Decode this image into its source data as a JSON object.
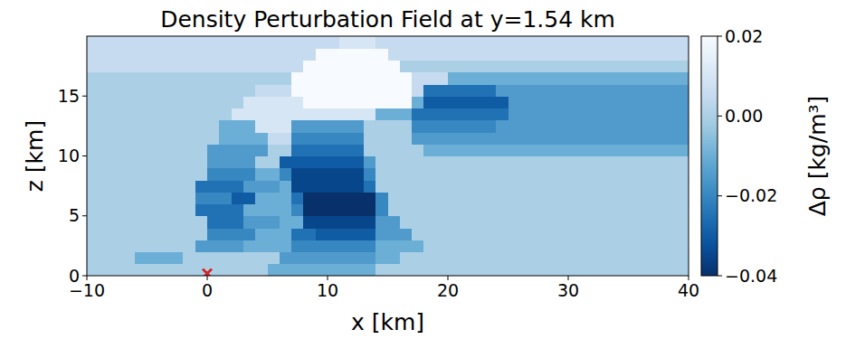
{
  "chart_data": {
    "type": "heatmap",
    "title": "Density Perturbation Field at y=1.54 km",
    "x_label": "x [km]",
    "y_label": "z [km]",
    "xlim": [
      -10,
      40
    ],
    "ylim": [
      0,
      20
    ],
    "xticks": [
      {
        "value": -10,
        "label": "−10"
      },
      0,
      10,
      20,
      30,
      40
    ],
    "yticks": [
      0,
      5,
      10,
      15
    ],
    "colorbar": {
      "label": "Δρ [kg/m³]",
      "lim": [
        -0.04,
        0.02
      ],
      "ticks": [
        {
          "value": 0.02,
          "label": "0.02"
        },
        {
          "value": 0,
          "label": "0.00"
        },
        {
          "value": -0.02,
          "label": "−0.02"
        },
        {
          "value": -0.04,
          "label": "−0.04"
        }
      ]
    },
    "points": {
      "x": [
        0
      ],
      "y": [
        0.2
      ],
      "color": "#d62728",
      "marker": "x"
    },
    "cells": [
      [
        0,
        0,
        0,
        0,
        0,
        0,
        0,
        0,
        0,
        0,
        0,
        0,
        0,
        0,
        0,
        -0.01,
        -0.01,
        -0.01,
        -0.01,
        -0.01,
        -0.01,
        -0.01,
        -0.01,
        -0.01,
        0,
        0,
        0,
        0,
        0,
        0,
        0,
        0,
        0,
        0,
        0,
        0,
        0,
        0,
        0,
        0,
        0,
        0,
        0,
        0,
        0,
        0,
        0,
        0,
        0,
        0
      ],
      [
        0,
        0,
        0,
        0,
        -0.01,
        -0.01,
        -0.01,
        -0.01,
        0,
        0,
        0,
        0,
        0,
        0,
        0,
        0,
        -0.015,
        -0.015,
        -0.015,
        -0.015,
        -0.015,
        -0.015,
        -0.015,
        -0.015,
        -0.01,
        -0.01,
        0,
        0,
        0,
        0,
        0,
        0,
        0,
        0,
        0,
        0,
        0,
        0,
        0,
        0,
        0,
        0,
        0,
        0,
        0,
        0,
        0,
        0,
        0,
        0
      ],
      [
        0,
        0,
        0,
        0,
        0,
        0,
        0,
        0,
        0,
        -0.015,
        -0.015,
        -0.015,
        -0.015,
        -0.01,
        -0.01,
        -0.01,
        -0.01,
        -0.02,
        -0.02,
        -0.02,
        -0.02,
        -0.02,
        -0.02,
        -0.02,
        -0.01,
        -0.01,
        -0.01,
        -0.01,
        0,
        0,
        0,
        0,
        0,
        0,
        0,
        0,
        0,
        0,
        0,
        0,
        0,
        0,
        0,
        0,
        0,
        0,
        0,
        0,
        0,
        0
      ],
      [
        0,
        0,
        0,
        0,
        0,
        0,
        0,
        0,
        0,
        0,
        -0.02,
        -0.02,
        -0.02,
        -0.02,
        -0.01,
        -0.01,
        -0.01,
        -0.025,
        -0.025,
        -0.03,
        -0.03,
        -0.03,
        -0.03,
        -0.03,
        -0.015,
        -0.015,
        -0.015,
        0,
        0,
        0,
        0,
        0,
        0,
        0,
        0,
        0,
        0,
        0,
        0,
        0,
        0,
        0,
        0,
        0,
        0,
        0,
        0,
        0,
        0,
        0
      ],
      [
        0,
        0,
        0,
        0,
        0,
        0,
        0,
        0,
        0,
        0,
        -0.025,
        -0.025,
        -0.025,
        -0.015,
        -0.015,
        -0.015,
        -0.01,
        -0.01,
        -0.035,
        -0.035,
        -0.035,
        -0.035,
        -0.035,
        -0.035,
        -0.015,
        -0.015,
        0,
        0,
        0,
        0,
        0,
        0,
        0,
        0,
        0,
        0,
        0,
        0,
        0,
        0,
        0,
        0,
        0,
        0,
        0,
        0,
        0,
        0,
        0,
        0
      ],
      [
        0,
        0,
        0,
        0,
        0,
        0,
        0,
        0,
        0,
        -0.025,
        -0.025,
        -0.025,
        -0.025,
        -0.01,
        -0.01,
        -0.01,
        -0.01,
        -0.02,
        -0.04,
        -0.04,
        -0.04,
        -0.04,
        -0.04,
        -0.04,
        -0.02,
        0,
        0,
        0,
        0,
        0,
        0,
        0,
        0,
        0,
        0,
        0,
        0,
        0,
        0,
        0,
        0,
        0,
        0,
        0,
        0,
        0,
        0,
        0,
        0,
        0
      ],
      [
        0,
        0,
        0,
        0,
        0,
        0,
        0,
        0,
        0,
        -0.02,
        -0.02,
        -0.02,
        -0.03,
        -0.03,
        -0.01,
        -0.01,
        -0.01,
        -0.025,
        -0.04,
        -0.04,
        -0.04,
        -0.04,
        -0.04,
        -0.04,
        -0.02,
        0,
        0,
        0,
        0,
        0,
        0,
        0,
        0,
        0,
        0,
        0,
        0,
        0,
        0,
        0,
        0,
        0,
        0,
        0,
        0,
        0,
        0,
        0,
        0,
        0
      ],
      [
        0,
        0,
        0,
        0,
        0,
        0,
        0,
        0,
        0,
        -0.025,
        -0.025,
        -0.025,
        -0.025,
        -0.015,
        -0.015,
        -0.015,
        -0.01,
        -0.035,
        -0.035,
        -0.035,
        -0.035,
        -0.035,
        -0.035,
        -0.025,
        0,
        0,
        0,
        0,
        0,
        0,
        0,
        0,
        0,
        0,
        0,
        0,
        0,
        0,
        0,
        0,
        0,
        0,
        0,
        0,
        0,
        0,
        0,
        0,
        0,
        0
      ],
      [
        0,
        0,
        0,
        0,
        0,
        0,
        0,
        0,
        0,
        0,
        -0.02,
        -0.02,
        -0.02,
        -0.02,
        -0.01,
        -0.01,
        -0.02,
        -0.035,
        -0.035,
        -0.035,
        -0.035,
        -0.035,
        -0.035,
        -0.02,
        0,
        0,
        0,
        0,
        0,
        0,
        0,
        0,
        0,
        0,
        0,
        0,
        0,
        0,
        0,
        0,
        0,
        0,
        0,
        0,
        0,
        0,
        0,
        0,
        0,
        0
      ],
      [
        0,
        0,
        0,
        0,
        0,
        0,
        0,
        0,
        0,
        0,
        -0.015,
        -0.015,
        -0.015,
        -0.015,
        0,
        0,
        -0.03,
        -0.03,
        -0.03,
        -0.03,
        -0.03,
        -0.03,
        -0.03,
        -0.015,
        0,
        0,
        0,
        0,
        0,
        0,
        0,
        0,
        0,
        0,
        0,
        0,
        0,
        0,
        0,
        0,
        0,
        0,
        0,
        0,
        0,
        0,
        0,
        0,
        0,
        0
      ],
      [
        0,
        0,
        0,
        0,
        0,
        0,
        0,
        0,
        0,
        0,
        -0.015,
        -0.015,
        -0.015,
        -0.015,
        -0.015,
        0,
        0,
        -0.025,
        -0.025,
        -0.025,
        -0.025,
        -0.025,
        -0.025,
        0,
        0,
        0,
        0,
        0,
        -0.01,
        -0.01,
        -0.01,
        -0.01,
        -0.01,
        -0.01,
        -0.01,
        -0.01,
        -0.01,
        -0.01,
        -0.01,
        -0.01,
        -0.01,
        -0.01,
        -0.01,
        -0.01,
        -0.01,
        -0.01,
        -0.01,
        -0.01,
        -0.01,
        -0.01
      ],
      [
        0,
        0,
        0,
        0,
        0,
        0,
        0,
        0,
        0,
        0,
        0,
        -0.01,
        -0.01,
        -0.01,
        -0.01,
        0.005,
        0.005,
        -0.02,
        -0.02,
        -0.02,
        -0.02,
        -0.02,
        -0.02,
        0,
        0,
        0,
        0,
        -0.015,
        -0.015,
        -0.015,
        -0.015,
        -0.015,
        -0.015,
        -0.015,
        -0.015,
        -0.015,
        -0.015,
        -0.015,
        -0.015,
        -0.015,
        -0.015,
        -0.015,
        -0.015,
        -0.015,
        -0.015,
        -0.015,
        -0.015,
        -0.015,
        -0.015,
        -0.015
      ],
      [
        0,
        0,
        0,
        0,
        0,
        0,
        0,
        0,
        0,
        0,
        0,
        -0.01,
        -0.01,
        -0.01,
        0.01,
        0.01,
        0.01,
        -0.015,
        -0.015,
        -0.015,
        -0.015,
        -0.015,
        -0.015,
        0,
        0,
        0,
        0,
        -0.02,
        -0.02,
        -0.02,
        -0.02,
        -0.02,
        -0.02,
        -0.02,
        -0.015,
        -0.015,
        -0.015,
        -0.015,
        -0.015,
        -0.015,
        -0.015,
        -0.015,
        -0.015,
        -0.015,
        -0.015,
        -0.015,
        -0.015,
        -0.015,
        -0.015,
        -0.015
      ],
      [
        0,
        0,
        0,
        0,
        0,
        0,
        0,
        0,
        0,
        0,
        0,
        0,
        0.01,
        0.01,
        0.01,
        0.01,
        0.01,
        0.01,
        0.01,
        0.01,
        0.01,
        0.01,
        0.01,
        0.01,
        -0.01,
        -0.01,
        -0.01,
        -0.025,
        -0.025,
        -0.025,
        -0.025,
        -0.025,
        -0.025,
        -0.025,
        -0.025,
        -0.015,
        -0.015,
        -0.015,
        -0.015,
        -0.015,
        -0.015,
        -0.015,
        -0.015,
        -0.015,
        -0.015,
        -0.015,
        -0.015,
        -0.015,
        -0.015,
        -0.015
      ],
      [
        0,
        0,
        0,
        0,
        0,
        0,
        0,
        0,
        0,
        0,
        0,
        0,
        0,
        0.01,
        0.01,
        0.01,
        0.01,
        0.01,
        0.02,
        0.02,
        0.02,
        0.02,
        0.02,
        0.02,
        0.02,
        0.02,
        0.02,
        -0.01,
        -0.03,
        -0.03,
        -0.03,
        -0.03,
        -0.03,
        -0.03,
        -0.03,
        -0.015,
        -0.015,
        -0.015,
        -0.015,
        -0.015,
        -0.015,
        -0.015,
        -0.015,
        -0.015,
        -0.015,
        -0.015,
        -0.015,
        -0.015,
        -0.015,
        -0.015
      ],
      [
        0,
        0,
        0,
        0,
        0,
        0,
        0,
        0,
        0,
        0,
        0,
        0,
        0,
        0,
        0.005,
        0.005,
        0.005,
        0.02,
        0.02,
        0.02,
        0.02,
        0.02,
        0.02,
        0.02,
        0.02,
        0.02,
        0.02,
        0.005,
        -0.025,
        -0.025,
        -0.025,
        -0.025,
        -0.025,
        -0.025,
        -0.015,
        -0.015,
        -0.015,
        -0.015,
        -0.015,
        -0.015,
        -0.015,
        -0.015,
        -0.015,
        -0.015,
        -0.015,
        -0.015,
        -0.015,
        -0.015,
        -0.015,
        -0.015
      ],
      [
        0,
        0,
        0,
        0,
        0,
        0,
        0,
        0,
        0,
        0,
        0,
        0,
        0,
        0,
        0,
        0,
        0,
        0.02,
        0.02,
        0.02,
        0.02,
        0.02,
        0.02,
        0.02,
        0.02,
        0.02,
        0.02,
        0.005,
        0.005,
        0.005,
        -0.01,
        -0.01,
        -0.01,
        -0.01,
        -0.01,
        -0.01,
        -0.01,
        -0.01,
        -0.01,
        -0.01,
        -0.01,
        -0.01,
        -0.01,
        -0.01,
        -0.01,
        -0.01,
        -0.01,
        -0.01,
        -0.01,
        -0.01
      ],
      [
        0.005,
        0.005,
        0.005,
        0.005,
        0.005,
        0.005,
        0.005,
        0.005,
        0.005,
        0.005,
        0.005,
        0.005,
        0.005,
        0.005,
        0.005,
        0.005,
        0.005,
        0.005,
        0.02,
        0.02,
        0.02,
        0.02,
        0.02,
        0.02,
        0.02,
        0.02,
        0,
        0,
        0,
        0,
        0,
        0,
        0,
        0,
        0,
        0,
        0,
        0,
        0,
        0,
        0,
        0,
        0,
        0,
        0,
        0,
        0,
        0,
        0,
        0
      ],
      [
        0.005,
        0.005,
        0.005,
        0.005,
        0.005,
        0.005,
        0.005,
        0.005,
        0.005,
        0.005,
        0.005,
        0.005,
        0.005,
        0.005,
        0.005,
        0.005,
        0.005,
        0.005,
        0.005,
        0.02,
        0.02,
        0.02,
        0.02,
        0.02,
        0.02,
        0.005,
        0.005,
        0.005,
        0.005,
        0.005,
        0.005,
        0.005,
        0.005,
        0.005,
        0.005,
        0.005,
        0.005,
        0.005,
        0.005,
        0.005,
        0.005,
        0.005,
        0.005,
        0.005,
        0.005,
        0.005,
        0.005,
        0.005,
        0.005,
        0.005
      ],
      [
        0.005,
        0.005,
        0.005,
        0.005,
        0.005,
        0.005,
        0.005,
        0.005,
        0.005,
        0.005,
        0.005,
        0.005,
        0.005,
        0.005,
        0.005,
        0.005,
        0.005,
        0.005,
        0.005,
        0.005,
        0.005,
        0.01,
        0.01,
        0.01,
        0.005,
        0.005,
        0.005,
        0.005,
        0.005,
        0.005,
        0.005,
        0.005,
        0.005,
        0.005,
        0.005,
        0.005,
        0.005,
        0.005,
        0.005,
        0.005,
        0.005,
        0.005,
        0.005,
        0.005,
        0.005,
        0.005,
        0.005,
        0.005,
        0.005,
        0.005
      ]
    ]
  }
}
